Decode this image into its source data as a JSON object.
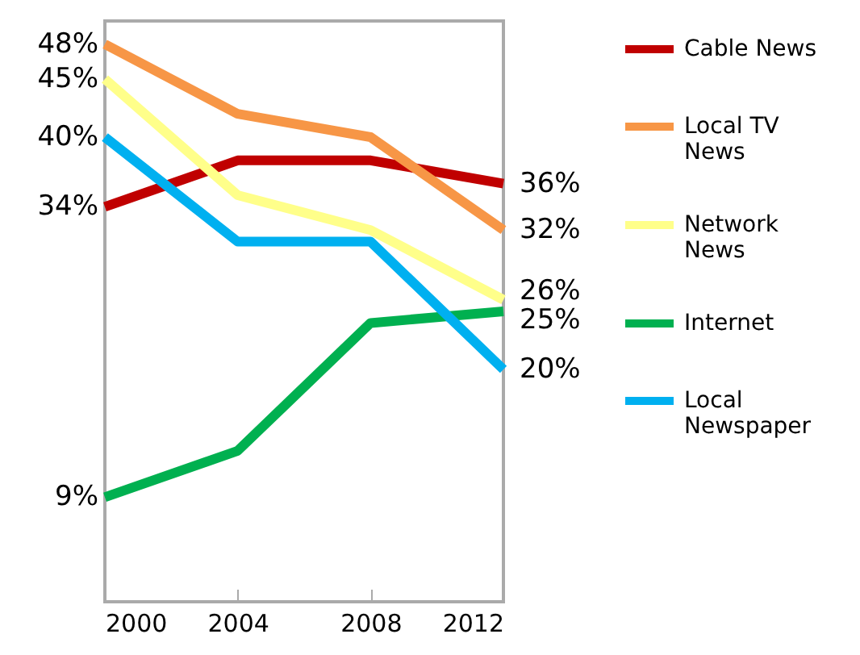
{
  "chart_data": {
    "type": "line",
    "x": [
      2000,
      2004,
      2008,
      2012
    ],
    "xlim": [
      2000,
      2012
    ],
    "xticks": [
      2000,
      2004,
      2008,
      2012
    ],
    "ylim": [
      0,
      50
    ],
    "tick_labels": "x",
    "legend": "right",
    "grid": false,
    "series": [
      {
        "name": "Cable News",
        "color": "#c00000",
        "values": [
          34,
          38,
          38,
          36
        ],
        "value_labels": [
          "34%",
          null,
          null,
          "36%"
        ]
      },
      {
        "name": "Local TV News",
        "color": "#f79646",
        "values": [
          48,
          42,
          40,
          32
        ],
        "value_labels": [
          "48%",
          null,
          null,
          "32%"
        ]
      },
      {
        "name": "Network News",
        "color": "#ffff8a",
        "values": [
          45,
          35,
          32,
          26
        ],
        "value_labels": [
          "45%",
          null,
          null,
          "26%"
        ]
      },
      {
        "name": "Internet",
        "color": "#00b050",
        "values": [
          9,
          13,
          24,
          25
        ],
        "value_labels": [
          "9%",
          null,
          null,
          "25%"
        ]
      },
      {
        "name": "Local Newspaper",
        "color": "#00b0f0",
        "values": [
          40,
          31,
          31,
          20
        ],
        "value_labels": [
          "40%",
          null,
          null,
          "20%"
        ]
      }
    ]
  }
}
